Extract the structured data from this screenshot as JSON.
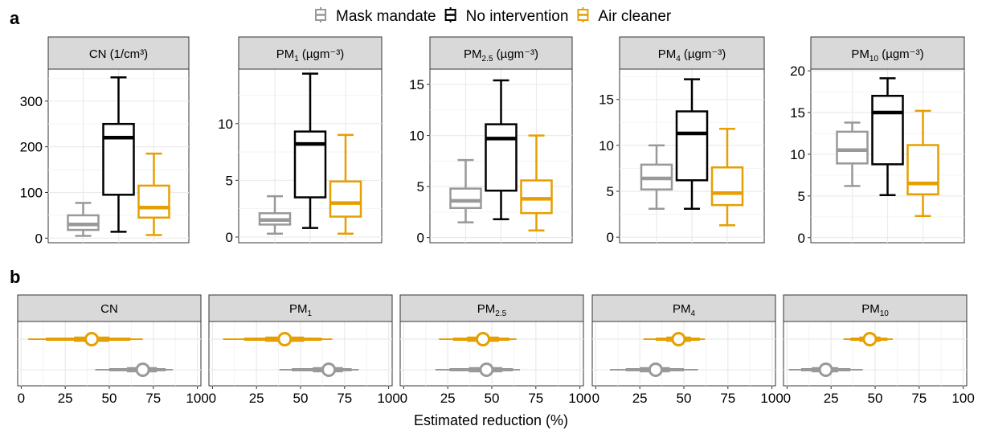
{
  "panel_labels": {
    "a": "a",
    "b": "b"
  },
  "legend": [
    {
      "label": "Mask mandate",
      "color": "#999999"
    },
    {
      "label": "No intervention",
      "color": "#000000"
    },
    {
      "label": "Air cleaner",
      "color": "#E69F00"
    }
  ],
  "colors": {
    "mask": "#999999",
    "none": "#000000",
    "air": "#E69F00",
    "strip_bg": "#d9d9d9",
    "grid": "#ebebeb"
  },
  "chart_data": [
    {
      "type": "box",
      "panel": "a",
      "facets": [
        {
          "strip": {
            "main": "CN",
            "sub": "",
            "unit": "(1/cm³)"
          },
          "ylim": [
            -10,
            370
          ],
          "yticks": [
            0,
            100,
            200,
            300
          ],
          "boxes": [
            {
              "group": "Mask mandate",
              "min": 5,
              "q1": 18,
              "median": 30,
              "q3": 50,
              "max": 77
            },
            {
              "group": "No intervention",
              "min": 14,
              "q1": 95,
              "median": 220,
              "q3": 250,
              "max": 352
            },
            {
              "group": "Air cleaner",
              "min": 7,
              "q1": 45,
              "median": 67,
              "q3": 115,
              "max": 185
            }
          ]
        },
        {
          "strip": {
            "main": "PM",
            "sub": "1",
            "unit": "(µgm⁻³)"
          },
          "ylim": [
            -0.5,
            14.8
          ],
          "yticks": [
            0,
            5,
            10
          ],
          "boxes": [
            {
              "group": "Mask mandate",
              "min": 0.3,
              "q1": 1.1,
              "median": 1.5,
              "q3": 2.1,
              "max": 3.6
            },
            {
              "group": "No intervention",
              "min": 0.8,
              "q1": 3.5,
              "median": 8.2,
              "q3": 9.3,
              "max": 14.4
            },
            {
              "group": "Air cleaner",
              "min": 0.3,
              "q1": 1.8,
              "median": 3.0,
              "q3": 4.9,
              "max": 9.0
            }
          ]
        },
        {
          "strip": {
            "main": "PM",
            "sub": "2.5",
            "unit": "(µgm⁻³)"
          },
          "ylim": [
            -0.5,
            16.5
          ],
          "yticks": [
            0,
            5,
            10,
            15
          ],
          "boxes": [
            {
              "group": "Mask mandate",
              "min": 1.5,
              "q1": 2.9,
              "median": 3.6,
              "q3": 4.8,
              "max": 7.6
            },
            {
              "group": "No intervention",
              "min": 1.8,
              "q1": 4.6,
              "median": 9.7,
              "q3": 11.1,
              "max": 15.4
            },
            {
              "group": "Air cleaner",
              "min": 0.7,
              "q1": 2.4,
              "median": 3.8,
              "q3": 5.6,
              "max": 10.0
            }
          ]
        },
        {
          "strip": {
            "main": "PM",
            "sub": "4",
            "unit": "(µgm⁻³)"
          },
          "ylim": [
            -0.6,
            18.3
          ],
          "yticks": [
            0,
            5,
            10,
            15
          ],
          "boxes": [
            {
              "group": "Mask mandate",
              "min": 3.1,
              "q1": 5.2,
              "median": 6.4,
              "q3": 7.9,
              "max": 10.0
            },
            {
              "group": "No intervention",
              "min": 3.1,
              "q1": 6.2,
              "median": 11.3,
              "q3": 13.7,
              "max": 17.2
            },
            {
              "group": "Air cleaner",
              "min": 1.3,
              "q1": 3.5,
              "median": 4.8,
              "q3": 7.6,
              "max": 11.8
            }
          ]
        },
        {
          "strip": {
            "main": "PM",
            "sub": "10",
            "unit": "(µgm⁻³)"
          },
          "ylim": [
            -0.6,
            20.2
          ],
          "yticks": [
            0,
            5,
            10,
            15,
            20
          ],
          "boxes": [
            {
              "group": "Mask mandate",
              "min": 6.2,
              "q1": 8.9,
              "median": 10.5,
              "q3": 12.7,
              "max": 13.8
            },
            {
              "group": "No intervention",
              "min": 5.1,
              "q1": 8.8,
              "median": 15.0,
              "q3": 17.0,
              "max": 19.1
            },
            {
              "group": "Air cleaner",
              "min": 2.6,
              "q1": 5.2,
              "median": 6.5,
              "q3": 11.1,
              "max": 15.2
            }
          ]
        }
      ]
    },
    {
      "type": "pointrange",
      "panel": "b",
      "xlabel": "Estimated reduction (%)",
      "xlim": [
        -2,
        102
      ],
      "xticks": [
        0,
        25,
        50,
        75,
        100
      ],
      "facets": [
        {
          "strip": {
            "main": "CN",
            "sub": ""
          },
          "estimates": [
            {
              "group": "Air cleaner",
              "point": 40,
              "inner": [
                30,
                50
              ],
              "mid": [
                14,
                62
              ],
              "outer": [
                4,
                69
              ]
            },
            {
              "group": "Mask mandate",
              "point": 69,
              "inner": [
                60,
                77
              ],
              "mid": [
                50,
                82
              ],
              "outer": [
                42,
                86
              ]
            }
          ]
        },
        {
          "strip": {
            "main": "PM",
            "sub": "1"
          },
          "estimates": [
            {
              "group": "Air cleaner",
              "point": 41,
              "inner": [
                30,
                52
              ],
              "mid": [
                18,
                62
              ],
              "outer": [
                6,
                68
              ]
            },
            {
              "group": "Mask mandate",
              "point": 66,
              "inner": [
                57,
                74
              ],
              "mid": [
                45,
                79
              ],
              "outer": [
                38,
                83
              ]
            }
          ]
        },
        {
          "strip": {
            "main": "PM",
            "sub": "2.5"
          },
          "estimates": [
            {
              "group": "Air cleaner",
              "point": 45,
              "inner": [
                36,
                54
              ],
              "mid": [
                28,
                60
              ],
              "outer": [
                20,
                64
              ]
            },
            {
              "group": "Mask mandate",
              "point": 47,
              "inner": [
                37,
                56
              ],
              "mid": [
                26,
                62
              ],
              "outer": [
                18,
                66
              ]
            }
          ]
        },
        {
          "strip": {
            "main": "PM",
            "sub": "4"
          },
          "estimates": [
            {
              "group": "Air cleaner",
              "point": 47,
              "inner": [
                40,
                54
              ],
              "mid": [
                34,
                59
              ],
              "outer": [
                27,
                62
              ]
            },
            {
              "group": "Mask mandate",
              "point": 34,
              "inner": [
                25,
                42
              ],
              "mid": [
                17,
                50
              ],
              "outer": [
                8,
                58
              ]
            }
          ]
        },
        {
          "strip": {
            "main": "PM",
            "sub": "10"
          },
          "estimates": [
            {
              "group": "Air cleaner",
              "point": 47,
              "inner": [
                41,
                53
              ],
              "mid": [
                36,
                57
              ],
              "outer": [
                32,
                60
              ]
            },
            {
              "group": "Mask mandate",
              "point": 22,
              "inner": [
                14,
                29
              ],
              "mid": [
                8,
                36
              ],
              "outer": [
                1,
                43
              ]
            }
          ]
        }
      ]
    }
  ]
}
